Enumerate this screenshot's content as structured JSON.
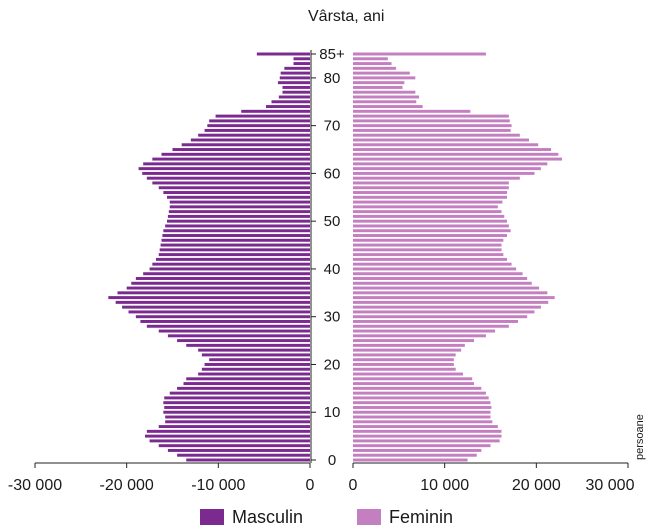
{
  "chart_data": {
    "type": "bar",
    "orientation": "horizontal",
    "title": "Vârsta, ani",
    "unit_label": "persoane",
    "age_categories": [
      "0",
      "1",
      "2",
      "3",
      "4",
      "5",
      "6",
      "7",
      "8",
      "9",
      "10",
      "11",
      "12",
      "13",
      "14",
      "15",
      "16",
      "17",
      "18",
      "19",
      "20",
      "21",
      "22",
      "23",
      "24",
      "25",
      "26",
      "27",
      "28",
      "29",
      "30",
      "31",
      "32",
      "33",
      "34",
      "35",
      "36",
      "37",
      "38",
      "39",
      "40",
      "41",
      "42",
      "43",
      "44",
      "45",
      "46",
      "47",
      "48",
      "49",
      "50",
      "51",
      "52",
      "53",
      "54",
      "55",
      "56",
      "57",
      "58",
      "59",
      "60",
      "61",
      "62",
      "63",
      "64",
      "65",
      "66",
      "67",
      "68",
      "69",
      "70",
      "71",
      "72",
      "73",
      "74",
      "75",
      "76",
      "77",
      "78",
      "79",
      "80",
      "81",
      "82",
      "83",
      "84",
      "85+"
    ],
    "y_tick_labels": [
      "0",
      "10",
      "20",
      "30",
      "40",
      "50",
      "60",
      "70",
      "80",
      "85+"
    ],
    "x_tick_labels_left": [
      "-30 000",
      "-20 000",
      "-10 000",
      "0"
    ],
    "x_tick_labels_right": [
      "0",
      "10 000",
      "20 000",
      "30 000"
    ],
    "xlim": [
      -30000,
      30000
    ],
    "series": [
      {
        "name": "Masculin",
        "color": "#7b2a8f",
        "values": [
          13500,
          14500,
          15500,
          16500,
          17500,
          18000,
          17800,
          16500,
          15800,
          15800,
          16000,
          15900,
          16000,
          15900,
          15300,
          14500,
          13800,
          13500,
          12200,
          11800,
          11500,
          11000,
          11800,
          12200,
          13500,
          14500,
          15500,
          16500,
          17800,
          18500,
          19000,
          19800,
          20500,
          21200,
          22000,
          21000,
          20000,
          19500,
          19000,
          18200,
          17500,
          17200,
          16800,
          16500,
          16400,
          16300,
          16200,
          16100,
          16000,
          15800,
          15600,
          15500,
          15400,
          15300,
          15300,
          15600,
          16000,
          16500,
          17200,
          17800,
          18300,
          18700,
          18200,
          17200,
          16200,
          15000,
          14000,
          13000,
          12200,
          11500,
          11200,
          11000,
          10300,
          7500,
          4800,
          4200,
          3400,
          3000,
          3000,
          3500,
          3300,
          3200,
          2800,
          1800,
          1800,
          5800
        ]
      },
      {
        "name": "Feminin",
        "color": "#c47fc0",
        "values": [
          12500,
          13500,
          14000,
          15000,
          16000,
          16200,
          16200,
          15800,
          15200,
          15000,
          15000,
          15100,
          15000,
          14800,
          14500,
          14000,
          13200,
          13000,
          12000,
          11200,
          11000,
          11000,
          11200,
          11800,
          12200,
          13200,
          14500,
          15500,
          17000,
          18000,
          19000,
          19800,
          20500,
          21300,
          22000,
          21200,
          20300,
          19500,
          19000,
          18500,
          17800,
          17300,
          16800,
          16400,
          16200,
          16200,
          16400,
          16800,
          17200,
          17000,
          16800,
          16500,
          16200,
          15800,
          16300,
          16800,
          16800,
          17000,
          17000,
          18200,
          19800,
          20500,
          21200,
          22800,
          22400,
          21600,
          20200,
          19200,
          18200,
          17200,
          17300,
          17100,
          17000,
          12800,
          7600,
          6900,
          7200,
          6800,
          5400,
          5600,
          6800,
          6200,
          4700,
          4200,
          3800,
          14500
        ]
      }
    ],
    "legend": [
      "Masculin",
      "Feminin"
    ],
    "legend_position": "bottom"
  }
}
